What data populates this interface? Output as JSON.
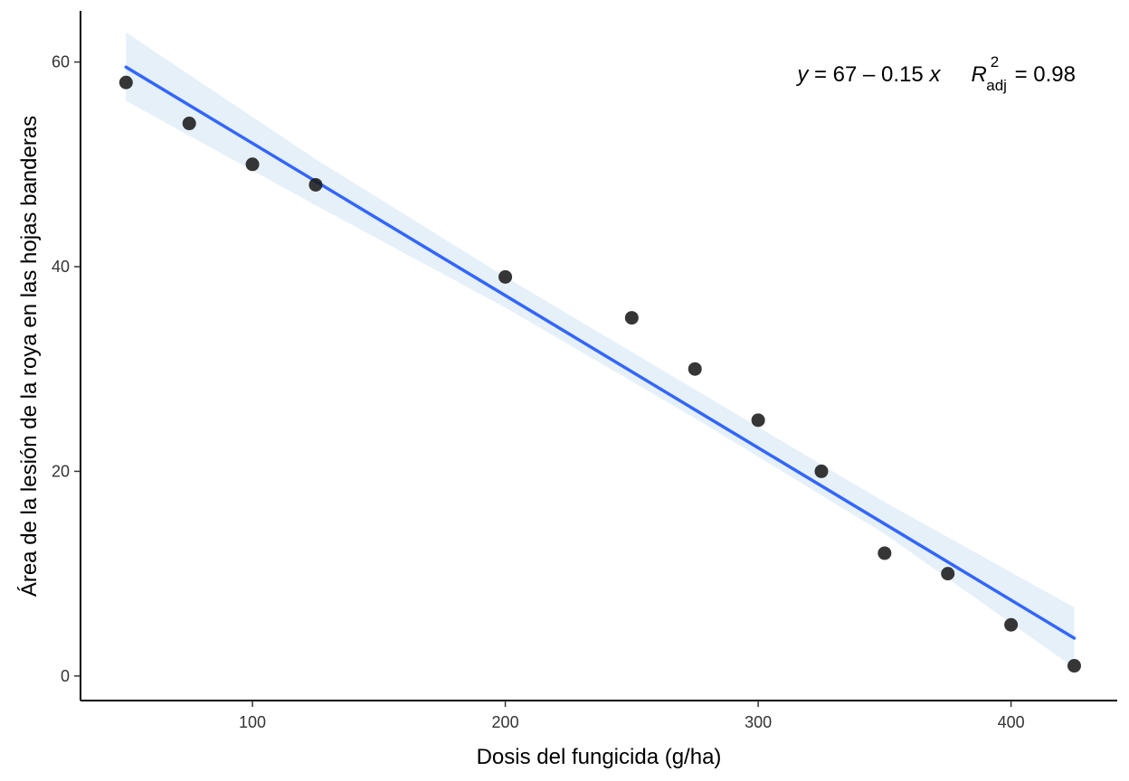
{
  "chart_data": {
    "type": "scatter",
    "xlabel": "Dosis del fungicida (g/ha)",
    "ylabel": "Área de la lesión de la roya en las hojas banderas",
    "xlim": [
      32,
      442
    ],
    "ylim": [
      -2.4,
      65
    ],
    "x_ticks": [
      100,
      200,
      300,
      400
    ],
    "y_ticks": [
      0,
      20,
      40,
      60
    ],
    "x_tick_labels": [
      "100",
      "200",
      "300",
      "400"
    ],
    "y_tick_labels": [
      "0",
      "20",
      "40",
      "60"
    ],
    "grid": false,
    "points": {
      "x": [
        50,
        75,
        100,
        125,
        200,
        250,
        275,
        300,
        325,
        350,
        375,
        400,
        425
      ],
      "y": [
        58,
        54,
        50,
        48,
        39,
        35,
        30,
        25,
        20,
        12,
        10,
        5,
        1
      ]
    },
    "fit_line": {
      "x": [
        50,
        425
      ],
      "y": [
        59.5,
        3.7
      ]
    },
    "confidence_band": {
      "x": [
        50,
        125,
        200,
        275,
        350,
        425
      ],
      "lower": [
        56.2,
        46.0,
        36.0,
        25.2,
        13.9,
        0.8
      ],
      "upper": [
        62.9,
        50.5,
        39.0,
        28.0,
        17.0,
        6.7
      ]
    },
    "annotation": {
      "y_var": "y",
      "equation": " = 67 – 0.15 ",
      "x_var": "x",
      "r_symbol": "R",
      "r_sup": "2",
      "r_sub": "adj",
      "r_value": " = 0.98"
    },
    "colors": {
      "points": "#1a1a1a",
      "line": "#3366ff",
      "band": "#dbeaf7"
    }
  }
}
